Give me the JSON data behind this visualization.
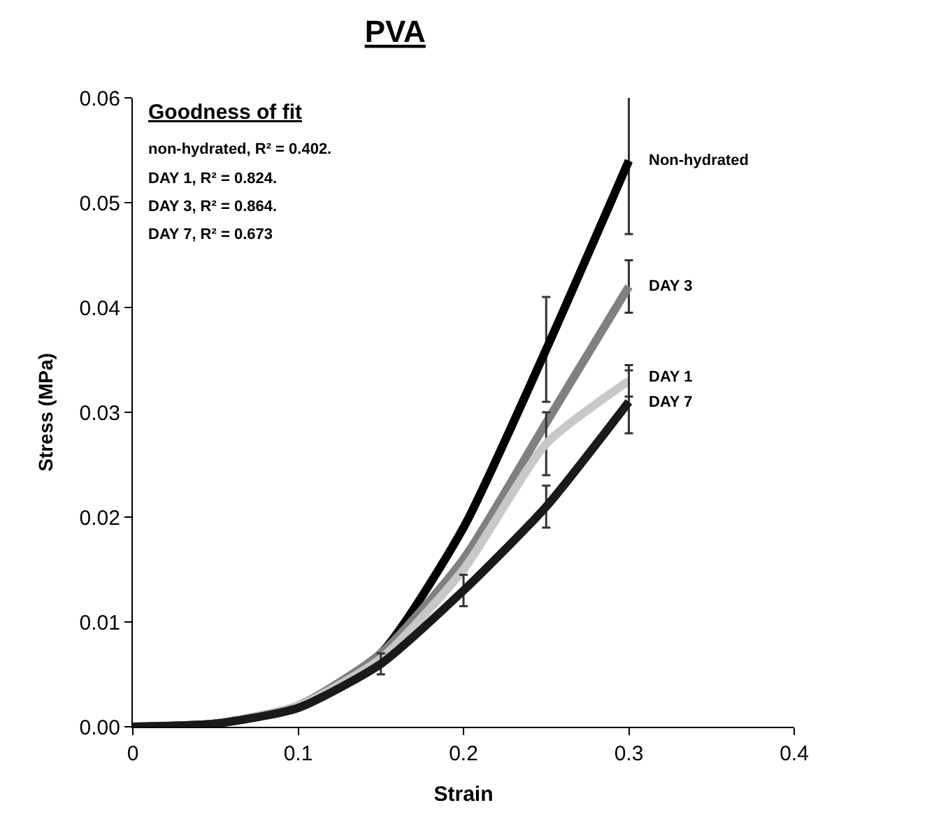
{
  "chart_data": {
    "type": "line",
    "title": "PVA",
    "xlabel": "Strain",
    "ylabel": "Stress (MPa)",
    "x": [
      0,
      0.05,
      0.1,
      0.15,
      0.2,
      0.25,
      0.3
    ],
    "series": [
      {
        "name": "Non-hydrated",
        "color": "#000000",
        "values": [
          0,
          0.0003,
          0.002,
          0.007,
          0.019,
          0.036,
          0.054
        ],
        "errors": [
          null,
          null,
          null,
          null,
          null,
          0.005,
          0.007
        ]
      },
      {
        "name": "DAY 3",
        "color": "#808080",
        "values": [
          0,
          0.0003,
          0.002,
          0.007,
          0.016,
          0.029,
          0.042
        ],
        "errors": [
          null,
          null,
          null,
          null,
          null,
          null,
          0.0025
        ]
      },
      {
        "name": "DAY 1",
        "color": "#c8c8c8",
        "values": [
          0,
          0.0003,
          0.002,
          0.0065,
          0.015,
          0.027,
          0.033
        ],
        "errors": [
          null,
          null,
          null,
          null,
          null,
          0.003,
          0.0015
        ]
      },
      {
        "name": "DAY 7",
        "color": "#1a1a1a",
        "values": [
          0,
          0.0003,
          0.0018,
          0.006,
          0.013,
          0.021,
          0.031
        ],
        "errors": [
          null,
          null,
          null,
          0.001,
          0.0015,
          0.002,
          0.003
        ]
      }
    ],
    "xlim": [
      0,
      0.4
    ],
    "xticks": [
      0,
      0.1,
      0.2,
      0.3,
      0.4
    ],
    "ylim": [
      0,
      0.06
    ],
    "yticks": [
      {
        "value": 0,
        "label": "0.00"
      },
      {
        "value": 0.01,
        "label": "0.01"
      },
      {
        "value": 0.02,
        "label": "0.02"
      },
      {
        "value": 0.03,
        "label": "0.03"
      },
      {
        "value": 0.04,
        "label": "0.04"
      },
      {
        "value": 0.05,
        "label": "0.05"
      },
      {
        "value": 0.06,
        "label": "0.06"
      }
    ],
    "annotations": [
      "Goodness of fit",
      "non-hydrated, R² = 0.402.",
      "DAY 1, R² = 0.824.",
      "DAY 3, R² = 0.864.",
      "DAY 7, R² = 0.673"
    ],
    "legend": false,
    "marker": "none",
    "line_style": "solid"
  }
}
